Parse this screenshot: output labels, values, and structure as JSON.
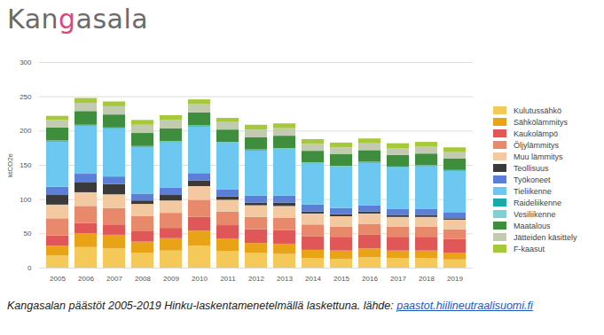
{
  "chart_data": {
    "type": "bar",
    "stacked": true,
    "title": "Kangasala",
    "caption": "Kangasalan päästöt 2005-2019 Hinku-laskentamenetelmällä laskettuna. lähde: ",
    "source": "paastot.hiilineutraalisuomi.fi",
    "y_label": "ktCO2e",
    "categories": [
      "2005",
      "2006",
      "2007",
      "2008",
      "2009",
      "2010",
      "2011",
      "2012",
      "2013",
      "2014",
      "2015",
      "2016",
      "2017",
      "2018",
      "2019"
    ],
    "ylim": [
      0,
      300
    ],
    "yticks": [
      0,
      50,
      100,
      150,
      200,
      250,
      300
    ],
    "grid": true,
    "legend": "right",
    "series": [
      {
        "name": "Kulutussähkö",
        "color": "#f5c85a",
        "values": [
          18,
          30,
          28,
          22,
          25,
          32,
          24,
          22,
          20,
          14,
          13,
          15,
          14,
          14,
          12
        ]
      },
      {
        "name": "Sähkölämmitys",
        "color": "#e8a317",
        "values": [
          14,
          20,
          20,
          16,
          18,
          22,
          18,
          14,
          15,
          12,
          12,
          13,
          11,
          11,
          10
        ]
      },
      {
        "name": "Kaukolämpö",
        "color": "#e05757",
        "values": [
          15,
          15,
          15,
          15,
          15,
          20,
          20,
          20,
          20,
          20,
          20,
          20,
          20,
          20,
          20
        ]
      },
      {
        "name": "Öljylämmitys",
        "color": "#e8896b",
        "values": [
          25,
          25,
          24,
          22,
          22,
          25,
          20,
          18,
          18,
          17,
          15,
          16,
          15,
          15,
          14
        ]
      },
      {
        "name": "Muu lämmitys",
        "color": "#f2c9a1",
        "values": [
          20,
          20,
          20,
          18,
          18,
          20,
          17,
          17,
          17,
          16,
          15,
          15,
          14,
          14,
          14
        ]
      },
      {
        "name": "Teollisuus",
        "color": "#3a3a3a",
        "values": [
          14,
          15,
          15,
          5,
          8,
          8,
          5,
          4,
          5,
          3,
          3,
          3,
          3,
          3,
          2
        ]
      },
      {
        "name": "Työkoneet",
        "color": "#5b7fd6",
        "values": [
          12,
          12,
          11,
          10,
          11,
          11,
          10,
          10,
          10,
          10,
          9,
          9,
          9,
          9,
          9
        ]
      },
      {
        "name": "Tieliikenne",
        "color": "#6cc8f0",
        "values": [
          66,
          70,
          70,
          68,
          66,
          68,
          68,
          66,
          68,
          60,
          60,
          62,
          60,
          62,
          60
        ]
      },
      {
        "name": "Raideliikenne",
        "color": "#1aa9a9",
        "values": [
          1,
          1,
          1,
          1,
          1,
          1,
          1,
          1,
          1,
          1,
          1,
          1,
          1,
          1,
          1
        ]
      },
      {
        "name": "Vesiliikenne",
        "color": "#7fd0d0",
        "values": [
          0.5,
          0.5,
          0.5,
          0.5,
          0.5,
          0.5,
          0.5,
          0.5,
          0.5,
          0.5,
          0.5,
          0.5,
          0.5,
          0.5,
          0.5
        ]
      },
      {
        "name": "Maatalous",
        "color": "#3e8e3e",
        "values": [
          19,
          20,
          19,
          19,
          19,
          19,
          18,
          18,
          18,
          17,
          17,
          17,
          17,
          17,
          17
        ]
      },
      {
        "name": "Jätteiden käsittely",
        "color": "#c2cbb0",
        "values": [
          11,
          12,
          12,
          12,
          12,
          12,
          11,
          11,
          11,
          10,
          10,
          10,
          10,
          10,
          9
        ]
      },
      {
        "name": "F-kaasut",
        "color": "#a6c93a",
        "values": [
          6,
          7,
          7,
          7,
          7,
          7,
          6,
          7,
          7,
          7,
          7,
          7,
          7,
          7,
          7
        ]
      }
    ]
  }
}
